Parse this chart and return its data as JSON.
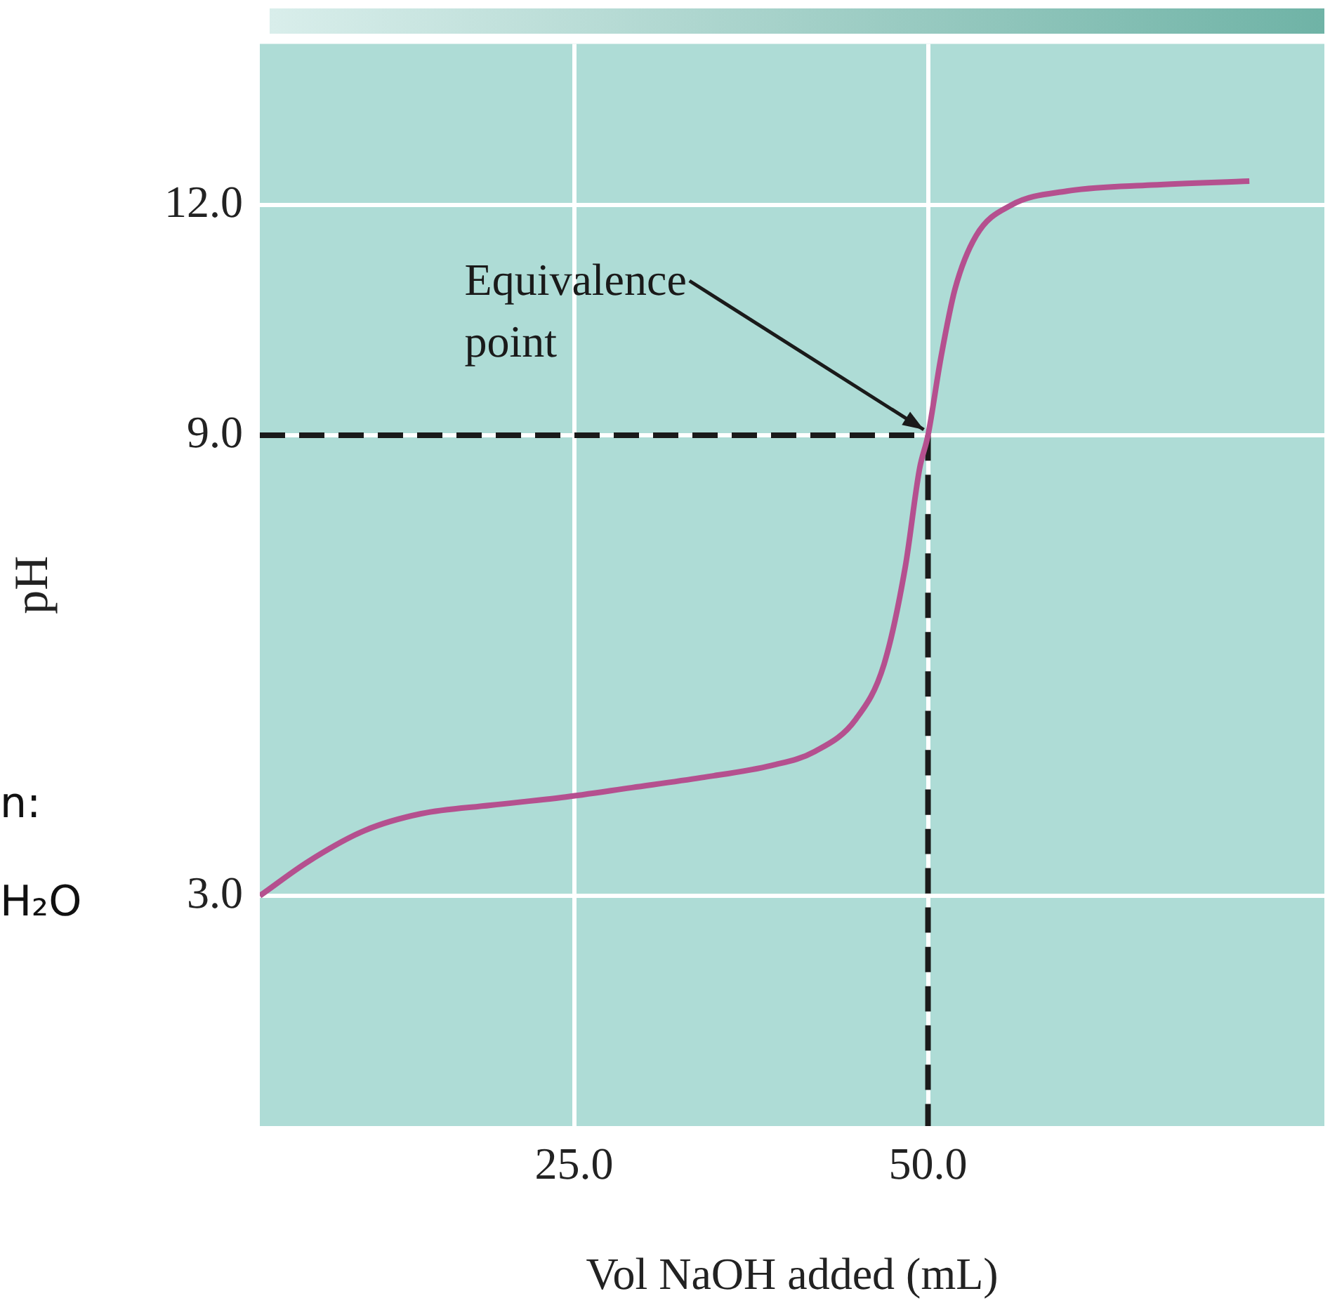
{
  "chart_data": {
    "type": "line",
    "xlabel": "Vol NaOH added (mL)",
    "ylabel": "pH",
    "xlim": [
      2.8,
      78
    ],
    "ylim": [
      0,
      14.1
    ],
    "xticks": [
      {
        "value": 25,
        "label": "25.0"
      },
      {
        "value": 50,
        "label": "50.0"
      }
    ],
    "yticks": [
      {
        "value": 3,
        "label": "3.0"
      },
      {
        "value": 9,
        "label": "9.0"
      },
      {
        "value": 12,
        "label": "12.0"
      }
    ],
    "grid": true,
    "legend": false,
    "marker": "none",
    "series": [
      {
        "color": "#b5508f",
        "x": [
          2.8,
          6.25,
          10.2,
          14.2,
          19.1,
          24.1,
          29.1,
          34.0,
          39.0,
          42.0,
          44.9,
          46.9,
          48.4,
          49.4,
          50.0,
          50.9,
          51.9,
          53.4,
          55.9,
          59.8,
          65.8,
          72.7
        ],
        "values": [
          3.0,
          3.45,
          3.85,
          4.07,
          4.18,
          4.28,
          4.41,
          4.54,
          4.7,
          4.88,
          5.3,
          6.02,
          7.29,
          8.56,
          9.0,
          10.0,
          10.9,
          11.6,
          12.0,
          12.18,
          12.26,
          12.31
        ]
      },
      {
        "color": "#1a1a1a",
        "line_style": "dashed",
        "x": [
          2.8,
          50,
          50
        ],
        "values": [
          9,
          9,
          0
        ]
      }
    ],
    "annotations": [
      {
        "text": "Equivalence\npoint",
        "x": 50,
        "y": 9
      },
      "n:",
      "H₂O"
    ]
  }
}
